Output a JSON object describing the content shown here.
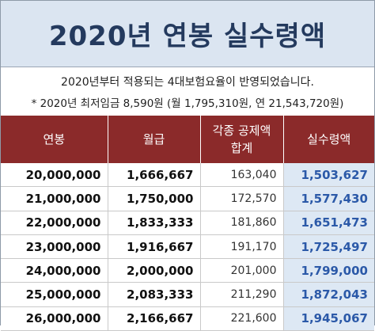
{
  "title": "2020년 연봉 실수령액",
  "info": {
    "line1": "2020년부터 적용되는 4대보험요율이 반영되었습니다.",
    "line2": "* 2020년 최저임금 8,590원 (월 1,795,310원, 연 21,543,720원)"
  },
  "table": {
    "headers": [
      "연봉",
      "월급",
      "각종 공제액\n합계",
      "실수령액"
    ],
    "rows": [
      [
        "20,000,000",
        "1,666,667",
        "163,040",
        "1,503,627"
      ],
      [
        "21,000,000",
        "1,750,000",
        "172,570",
        "1,577,430"
      ],
      [
        "22,000,000",
        "1,833,333",
        "181,860",
        "1,651,473"
      ],
      [
        "23,000,000",
        "1,916,667",
        "191,170",
        "1,725,497"
      ],
      [
        "24,000,000",
        "2,000,000",
        "201,000",
        "1,799,000"
      ],
      [
        "25,000,000",
        "2,083,333",
        "211,290",
        "1,872,043"
      ],
      [
        "26,000,000",
        "2,166,667",
        "221,600",
        "1,945,067"
      ]
    ]
  }
}
